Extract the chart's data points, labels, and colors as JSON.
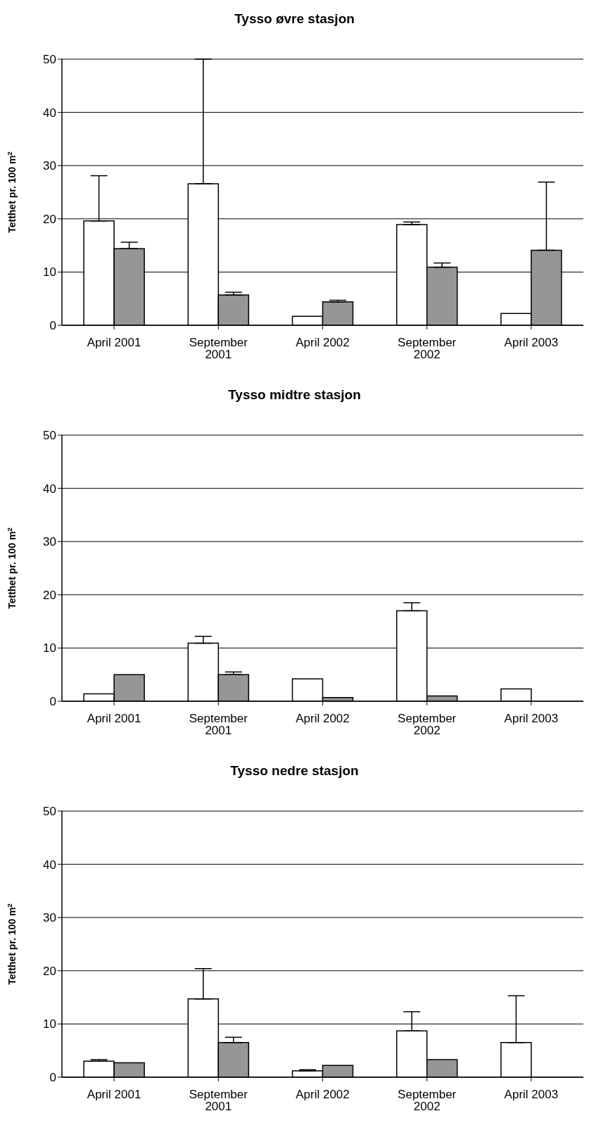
{
  "chart_data": [
    {
      "type": "bar",
      "title": "Tysso øvre stasjon",
      "ylabel": "Tetthet pr. 100 m$^{2}$",
      "categories": [
        "April 2001",
        "September 2001",
        "April 2002",
        "September 2002",
        "April 2003"
      ],
      "ylim": [
        0,
        50
      ],
      "yticks": [
        0,
        10,
        20,
        30,
        40,
        50
      ],
      "grid": "y",
      "legend": false,
      "series": [
        {
          "color": "#ffffff",
          "values": [
            19.6,
            26.6,
            1.7,
            18.9,
            2.2
          ],
          "errors": [
            [
              19.6,
              28.1
            ],
            [
              26.6,
              50
            ],
            null,
            [
              18.9,
              19.4
            ],
            null
          ]
        },
        {
          "color": "#969696",
          "values": [
            14.4,
            5.7,
            4.4,
            10.9,
            14.1
          ],
          "errors": [
            [
              14.4,
              15.6
            ],
            [
              5.7,
              6.2
            ],
            [
              4.4,
              4.7
            ],
            [
              10.9,
              11.7
            ],
            [
              14.1,
              26.9
            ]
          ]
        }
      ]
    },
    {
      "type": "bar",
      "title": "Tysso midtre stasjon",
      "ylabel": "Tetthet pr. 100 m$^{2}$",
      "categories": [
        "April 2001",
        "September 2001",
        "April 2002",
        "September 2002",
        "April 2003"
      ],
      "ylim": [
        0,
        50
      ],
      "yticks": [
        0,
        10,
        20,
        30,
        40,
        50
      ],
      "grid": "y",
      "legend": false,
      "series": [
        {
          "color": "#ffffff",
          "values": [
            1.4,
            10.9,
            4.2,
            17.0,
            2.3
          ],
          "errors": [
            null,
            [
              10.9,
              12.2
            ],
            null,
            [
              17.0,
              18.5
            ],
            null
          ]
        },
        {
          "color": "#969696",
          "values": [
            5.0,
            5.0,
            0.7,
            1.0,
            null
          ],
          "errors": [
            null,
            [
              5.0,
              5.5
            ],
            null,
            null,
            null
          ]
        }
      ]
    },
    {
      "type": "bar",
      "title": "Tysso nedre stasjon",
      "ylabel": "Tetthet pr. 100 m$^{2}$",
      "categories": [
        "April 2001",
        "September 2001",
        "April 2002",
        "September 2002",
        "April 2003"
      ],
      "ylim": [
        0,
        50
      ],
      "yticks": [
        0,
        10,
        20,
        30,
        40,
        50
      ],
      "grid": "y",
      "legend": false,
      "series": [
        {
          "color": "#ffffff",
          "values": [
            3.0,
            14.7,
            1.2,
            8.7,
            6.5
          ],
          "errors": [
            [
              3.0,
              3.3
            ],
            [
              14.7,
              20.4
            ],
            [
              1.2,
              1.4
            ],
            [
              8.7,
              12.3
            ],
            [
              6.5,
              15.3
            ]
          ]
        },
        {
          "color": "#969696",
          "values": [
            2.7,
            6.5,
            2.2,
            3.3,
            null
          ],
          "errors": [
            null,
            [
              6.5,
              7.5
            ],
            null,
            null,
            null
          ]
        }
      ]
    }
  ]
}
